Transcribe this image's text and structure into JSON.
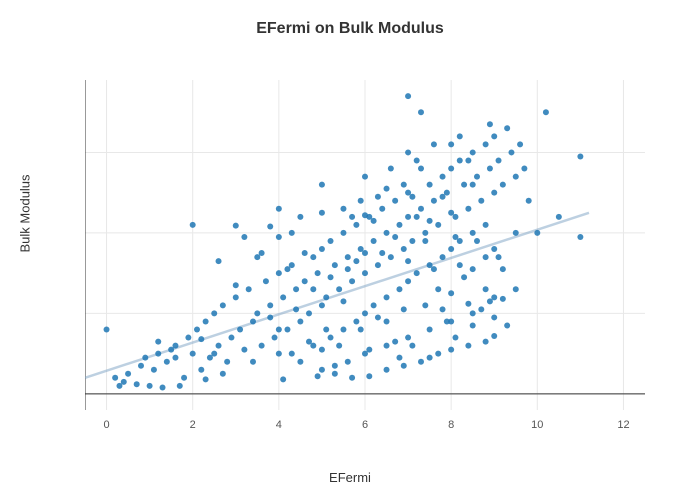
{
  "chart": {
    "type": "scatter",
    "title": "EFermi on Bulk Modulus",
    "title_fontsize": 16,
    "title_color": "#333333",
    "xlabel": "EFermi",
    "ylabel": "Bulk Modulus",
    "label_fontsize": 13,
    "xlim": [
      -0.5,
      12.5
    ],
    "ylim": [
      -20,
      390
    ],
    "xticks": [
      0,
      2,
      4,
      6,
      8,
      10,
      12
    ],
    "yticks": [
      0,
      100,
      200,
      300
    ],
    "background_color": "#ffffff",
    "grid_color": "#e8e8e8",
    "axis_color": "#333333",
    "tick_fontsize": 11,
    "marker_color": "#1f77b4",
    "marker_radius": 3,
    "marker_opacity": 0.85,
    "trend_line": {
      "x1": -0.5,
      "y1": 20,
      "x2": 11.2,
      "y2": 225,
      "color": "#87a9c9",
      "width": 2.5,
      "opacity": 0.55
    },
    "data": [
      [
        0.0,
        80
      ],
      [
        0.2,
        20
      ],
      [
        0.3,
        10
      ],
      [
        0.4,
        15
      ],
      [
        0.5,
        25
      ],
      [
        0.8,
        35
      ],
      [
        0.9,
        45
      ],
      [
        1.0,
        10
      ],
      [
        1.1,
        30
      ],
      [
        1.2,
        50
      ],
      [
        1.3,
        8
      ],
      [
        1.4,
        40
      ],
      [
        1.5,
        55
      ],
      [
        1.6,
        60
      ],
      [
        1.7,
        10
      ],
      [
        1.8,
        20
      ],
      [
        1.9,
        70
      ],
      [
        2.0,
        50
      ],
      [
        2.0,
        210
      ],
      [
        2.1,
        80
      ],
      [
        2.2,
        30
      ],
      [
        2.3,
        90
      ],
      [
        2.4,
        45
      ],
      [
        2.5,
        100
      ],
      [
        2.5,
        50
      ],
      [
        2.6,
        60
      ],
      [
        2.7,
        110
      ],
      [
        2.8,
        40
      ],
      [
        2.9,
        70
      ],
      [
        3.0,
        120
      ],
      [
        3.0,
        209
      ],
      [
        3.1,
        80
      ],
      [
        3.2,
        55
      ],
      [
        3.3,
        130
      ],
      [
        3.4,
        90
      ],
      [
        3.5,
        100
      ],
      [
        3.5,
        170
      ],
      [
        3.6,
        60
      ],
      [
        3.7,
        140
      ],
      [
        3.8,
        110
      ],
      [
        3.8,
        208
      ],
      [
        3.9,
        70
      ],
      [
        4.0,
        150
      ],
      [
        4.0,
        50
      ],
      [
        4.0,
        195
      ],
      [
        4.1,
        120
      ],
      [
        4.2,
        80
      ],
      [
        4.3,
        160
      ],
      [
        4.3,
        200
      ],
      [
        4.4,
        130
      ],
      [
        4.5,
        90
      ],
      [
        4.5,
        220
      ],
      [
        4.6,
        140
      ],
      [
        4.7,
        100
      ],
      [
        4.8,
        170
      ],
      [
        4.8,
        60
      ],
      [
        4.9,
        150
      ],
      [
        5.0,
        180
      ],
      [
        5.0,
        110
      ],
      [
        5.0,
        225
      ],
      [
        5.0,
        30
      ],
      [
        5.1,
        120
      ],
      [
        5.2,
        190
      ],
      [
        5.2,
        70
      ],
      [
        5.3,
        160
      ],
      [
        5.4,
        130
      ],
      [
        5.5,
        200
      ],
      [
        5.5,
        80
      ],
      [
        5.5,
        230
      ],
      [
        5.6,
        170
      ],
      [
        5.6,
        40
      ],
      [
        5.7,
        140
      ],
      [
        5.8,
        210
      ],
      [
        5.8,
        90
      ],
      [
        5.9,
        180
      ],
      [
        5.9,
        240
      ],
      [
        6.0,
        150
      ],
      [
        6.0,
        100
      ],
      [
        6.0,
        222
      ],
      [
        6.0,
        50
      ],
      [
        6.1,
        220
      ],
      [
        6.2,
        190
      ],
      [
        6.2,
        110
      ],
      [
        6.3,
        160
      ],
      [
        6.3,
        245
      ],
      [
        6.4,
        230
      ],
      [
        6.5,
        200
      ],
      [
        6.5,
        120
      ],
      [
        6.5,
        60
      ],
      [
        6.6,
        170
      ],
      [
        6.6,
        280
      ],
      [
        6.7,
        240
      ],
      [
        6.8,
        210
      ],
      [
        6.8,
        130
      ],
      [
        6.9,
        180
      ],
      [
        6.9,
        260
      ],
      [
        7.0,
        250
      ],
      [
        7.0,
        220
      ],
      [
        7.0,
        140
      ],
      [
        7.0,
        70
      ],
      [
        7.0,
        370
      ],
      [
        7.1,
        190
      ],
      [
        7.2,
        290
      ],
      [
        7.2,
        150
      ],
      [
        7.3,
        230
      ],
      [
        7.3,
        350
      ],
      [
        7.4,
        200
      ],
      [
        7.5,
        260
      ],
      [
        7.5,
        160
      ],
      [
        7.5,
        80
      ],
      [
        7.6,
        240
      ],
      [
        7.6,
        310
      ],
      [
        7.7,
        210
      ],
      [
        7.8,
        270
      ],
      [
        7.8,
        170
      ],
      [
        7.8,
        105
      ],
      [
        7.9,
        250
      ],
      [
        8.0,
        280
      ],
      [
        8.0,
        180
      ],
      [
        8.0,
        90
      ],
      [
        8.0,
        225
      ],
      [
        8.1,
        220
      ],
      [
        8.2,
        290
      ],
      [
        8.2,
        190
      ],
      [
        8.2,
        320
      ],
      [
        8.3,
        260
      ],
      [
        8.4,
        230
      ],
      [
        8.4,
        112
      ],
      [
        8.5,
        300
      ],
      [
        8.5,
        200
      ],
      [
        8.5,
        100
      ],
      [
        8.6,
        270
      ],
      [
        8.7,
        240
      ],
      [
        8.8,
        310
      ],
      [
        8.8,
        210
      ],
      [
        8.8,
        130
      ],
      [
        8.9,
        280
      ],
      [
        8.9,
        335
      ],
      [
        9.0,
        320
      ],
      [
        9.0,
        250
      ],
      [
        9.0,
        120
      ],
      [
        9.0,
        180
      ],
      [
        9.1,
        290
      ],
      [
        9.2,
        260
      ],
      [
        9.2,
        118
      ],
      [
        9.3,
        330
      ],
      [
        9.4,
        300
      ],
      [
        9.5,
        270
      ],
      [
        9.5,
        130
      ],
      [
        9.6,
        310
      ],
      [
        9.7,
        280
      ],
      [
        9.8,
        240
      ],
      [
        10.0,
        200
      ],
      [
        10.2,
        350
      ],
      [
        10.5,
        220
      ],
      [
        11.0,
        195
      ],
      [
        11.0,
        295
      ],
      [
        4.2,
        155
      ],
      [
        4.6,
        175
      ],
      [
        5.0,
        55
      ],
      [
        5.3,
        35
      ],
      [
        5.8,
        165
      ],
      [
        6.1,
        55
      ],
      [
        6.4,
        175
      ],
      [
        6.7,
        65
      ],
      [
        6.9,
        105
      ],
      [
        7.1,
        60
      ],
      [
        7.3,
        280
      ],
      [
        7.4,
        110
      ],
      [
        7.6,
        155
      ],
      [
        7.9,
        90
      ],
      [
        8.1,
        70
      ],
      [
        8.3,
        145
      ],
      [
        8.5,
        155
      ],
      [
        8.7,
        105
      ],
      [
        3.2,
        195
      ],
      [
        3.6,
        175
      ],
      [
        2.6,
        165
      ],
      [
        2.3,
        18
      ],
      [
        1.6,
        45
      ],
      [
        1.2,
        65
      ],
      [
        0.7,
        12
      ],
      [
        4.0,
        230
      ],
      [
        4.3,
        50
      ],
      [
        4.7,
        65
      ],
      [
        5.1,
        80
      ],
      [
        5.4,
        60
      ],
      [
        5.7,
        220
      ],
      [
        6.0,
        270
      ],
      [
        6.2,
        215
      ],
      [
        6.5,
        255
      ],
      [
        6.8,
        45
      ],
      [
        7.0,
        300
      ],
      [
        7.2,
        220
      ],
      [
        7.5,
        215
      ],
      [
        7.7,
        130
      ],
      [
        8.0,
        310
      ],
      [
        8.2,
        160
      ],
      [
        8.4,
        290
      ],
      [
        8.6,
        190
      ],
      [
        8.9,
        115
      ],
      [
        9.1,
        170
      ],
      [
        4.1,
        18
      ],
      [
        4.5,
        40
      ],
      [
        4.9,
        22
      ],
      [
        5.3,
        25
      ],
      [
        5.7,
        20
      ],
      [
        6.1,
        22
      ],
      [
        6.5,
        30
      ],
      [
        6.9,
        35
      ],
      [
        7.3,
        40
      ],
      [
        7.7,
        50
      ],
      [
        8.0,
        55
      ],
      [
        8.4,
        60
      ],
      [
        8.8,
        65
      ],
      [
        9.0,
        72
      ],
      [
        9.3,
        85
      ],
      [
        3.0,
        135
      ],
      [
        3.4,
        40
      ],
      [
        3.8,
        95
      ],
      [
        2.2,
        68
      ],
      [
        2.7,
        25
      ],
      [
        5.0,
        260
      ],
      [
        5.5,
        115
      ],
      [
        6.0,
        175
      ],
      [
        6.5,
        90
      ],
      [
        7.0,
        165
      ],
      [
        7.5,
        45
      ],
      [
        8.0,
        125
      ],
      [
        8.5,
        85
      ],
      [
        9.0,
        95
      ],
      [
        4.4,
        105
      ],
      [
        4.8,
        130
      ],
      [
        5.2,
        145
      ],
      [
        5.6,
        155
      ],
      [
        5.9,
        80
      ],
      [
        6.3,
        95
      ],
      [
        6.7,
        195
      ],
      [
        7.1,
        245
      ],
      [
        7.4,
        190
      ],
      [
        7.8,
        245
      ],
      [
        8.1,
        195
      ],
      [
        8.5,
        260
      ],
      [
        8.8,
        170
      ],
      [
        9.2,
        155
      ],
      [
        9.5,
        200
      ],
      [
        4.0,
        80
      ]
    ]
  }
}
